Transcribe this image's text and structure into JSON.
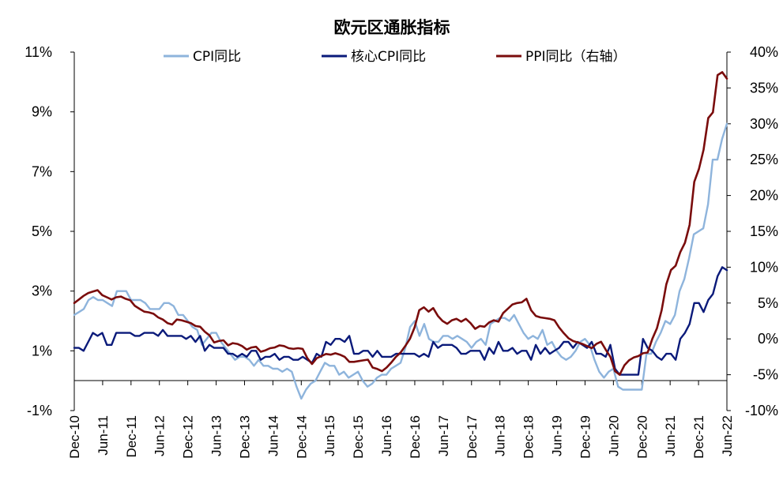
{
  "chart_data": {
    "type": "line",
    "title": "欧元区通胀指标",
    "left_axis": {
      "ticks": [
        "11%",
        "9%",
        "7%",
        "5%",
        "3%",
        "1%",
        "-1%"
      ],
      "range": [
        -1,
        11
      ],
      "unit": "%"
    },
    "right_axis": {
      "ticks": [
        "40%",
        "35%",
        "30%",
        "25%",
        "20%",
        "15%",
        "10%",
        "5%",
        "0%",
        "-5%",
        "-10%"
      ],
      "range": [
        -10,
        40
      ],
      "unit": "%"
    },
    "x_ticks": [
      "Dec-10",
      "Jun-11",
      "Dec-11",
      "Jun-12",
      "Dec-12",
      "Jun-13",
      "Dec-13",
      "Jun-14",
      "Dec-14",
      "Jun-15",
      "Dec-15",
      "Jun-16",
      "Dec-16",
      "Jun-17",
      "Dec-17",
      "Jun-18",
      "Dec-18",
      "Jun-19",
      "Dec-19",
      "Jun-20",
      "Dec-20",
      "Jun-21",
      "Dec-21",
      "Jun-22"
    ],
    "x_start": "Dec-10",
    "x_end": "Jun-22",
    "legend_position": "top",
    "series": [
      {
        "name": "CPI同比",
        "axis": "left",
        "color": "#8eb4dc",
        "values": [
          2.2,
          2.3,
          2.4,
          2.7,
          2.8,
          2.7,
          2.7,
          2.6,
          2.5,
          3.0,
          3.0,
          3.0,
          2.7,
          2.7,
          2.7,
          2.6,
          2.4,
          2.4,
          2.4,
          2.6,
          2.6,
          2.5,
          2.2,
          2.2,
          2.0,
          1.8,
          1.7,
          1.2,
          1.4,
          1.6,
          1.6,
          1.3,
          1.1,
          0.9,
          0.7,
          0.8,
          0.8,
          0.7,
          0.5,
          0.7,
          0.5,
          0.5,
          0.4,
          0.4,
          0.3,
          0.4,
          0.3,
          -0.2,
          -0.6,
          -0.3,
          -0.1,
          0.0,
          0.3,
          0.6,
          0.5,
          0.5,
          0.2,
          0.3,
          0.1,
          0.2,
          0.3,
          0.0,
          -0.2,
          -0.1,
          0.1,
          0.2,
          0.2,
          0.4,
          0.5,
          0.6,
          1.1,
          1.8,
          2.0,
          1.5,
          1.9,
          1.4,
          1.3,
          1.3,
          1.5,
          1.5,
          1.4,
          1.5,
          1.4,
          1.3,
          1.1,
          1.3,
          1.4,
          1.2,
          1.9,
          2.0,
          2.1,
          2.1,
          2.0,
          2.2,
          1.9,
          1.6,
          1.4,
          1.5,
          1.4,
          1.7,
          1.2,
          1.3,
          1.0,
          0.8,
          0.7,
          0.8,
          1.0,
          1.3,
          1.4,
          1.2,
          0.7,
          0.3,
          0.1,
          0.3,
          0.4,
          -0.2,
          -0.3,
          -0.3,
          -0.3,
          -0.3,
          -0.3,
          0.9,
          0.9,
          1.3,
          1.6,
          2.0,
          1.9,
          2.2,
          3.0,
          3.4,
          4.1,
          4.9,
          5.0,
          5.1,
          5.9,
          7.4,
          7.4,
          8.1,
          8.6
        ]
      },
      {
        "name": "核心CPI同比",
        "axis": "left",
        "color": "#0a1a7a",
        "values": [
          1.1,
          1.1,
          1.0,
          1.3,
          1.6,
          1.5,
          1.6,
          1.2,
          1.2,
          1.6,
          1.6,
          1.6,
          1.6,
          1.5,
          1.5,
          1.6,
          1.6,
          1.6,
          1.5,
          1.7,
          1.5,
          1.5,
          1.5,
          1.5,
          1.4,
          1.5,
          1.3,
          1.5,
          1.0,
          1.2,
          1.1,
          1.1,
          1.1,
          0.9,
          0.9,
          0.8,
          0.9,
          0.8,
          1.0,
          1.0,
          0.7,
          0.8,
          0.8,
          0.9,
          0.7,
          0.8,
          0.8,
          0.7,
          0.7,
          0.8,
          0.7,
          0.6,
          0.9,
          0.8,
          1.3,
          1.2,
          1.4,
          1.4,
          1.3,
          1.5,
          0.9,
          0.9,
          1.0,
          1.0,
          0.8,
          1.0,
          0.8,
          0.8,
          0.8,
          0.9,
          0.9,
          0.9,
          0.9,
          0.9,
          0.8,
          0.9,
          0.8,
          1.3,
          1.1,
          1.2,
          1.2,
          1.2,
          1.1,
          0.9,
          0.9,
          1.0,
          1.0,
          1.0,
          0.7,
          1.1,
          0.9,
          1.3,
          1.0,
          1.0,
          1.1,
          0.9,
          1.0,
          1.0,
          0.7,
          1.2,
          0.9,
          1.1,
          0.9,
          1.0,
          1.1,
          1.3,
          1.3,
          1.1,
          1.3,
          1.2,
          1.1,
          1.3,
          0.9,
          0.9,
          0.8,
          1.2,
          0.4,
          0.2,
          0.2,
          0.2,
          0.2,
          0.2,
          1.4,
          1.1,
          1.0,
          0.8,
          0.7,
          0.9,
          0.9,
          0.7,
          1.4,
          1.6,
          1.9,
          2.6,
          2.6,
          2.3,
          2.7,
          2.9,
          3.5,
          3.8,
          3.7
        ]
      },
      {
        "name": "PPI同比（右轴）",
        "axis": "right",
        "color": "#7a0c0c",
        "values": [
          5.0,
          5.5,
          6.0,
          6.4,
          6.6,
          6.8,
          6.1,
          5.8,
          5.5,
          5.8,
          5.9,
          5.6,
          5.4,
          4.6,
          4.2,
          3.8,
          3.7,
          3.5,
          3.0,
          2.7,
          2.2,
          2.0,
          2.7,
          2.6,
          2.4,
          2.2,
          1.8,
          1.7,
          1.0,
          0.5,
          -0.5,
          -0.3,
          -0.2,
          -0.9,
          -0.6,
          -0.7,
          -1.0,
          -1.5,
          -1.2,
          -1.1,
          -1.8,
          -1.6,
          -1.3,
          -1.2,
          -0.9,
          -1.0,
          -1.3,
          -1.4,
          -1.3,
          -1.4,
          -2.7,
          -3.5,
          -2.7,
          -2.4,
          -2.1,
          -2.2,
          -2.0,
          -2.2,
          -2.5,
          -3.2,
          -3.2,
          -3.1,
          -3.0,
          -2.9,
          -4.0,
          -4.2,
          -4.5,
          -4.0,
          -3.3,
          -2.5,
          -1.9,
          -1.0,
          0.0,
          1.6,
          4.0,
          4.4,
          3.8,
          4.3,
          3.2,
          2.5,
          2.1,
          2.6,
          2.8,
          2.4,
          2.8,
          2.2,
          1.4,
          1.8,
          1.7,
          2.3,
          2.6,
          2.4,
          3.6,
          4.2,
          4.8,
          5.0,
          5.1,
          5.6,
          4.0,
          3.2,
          3.0,
          2.9,
          2.8,
          2.6,
          1.6,
          0.8,
          0.1,
          -0.3,
          -0.5,
          -0.7,
          -1.0,
          -1.3,
          -0.7,
          -0.4,
          -1.5,
          -2.5,
          -4.5,
          -5.0,
          -3.7,
          -3.0,
          -2.6,
          -2.4,
          -2.0,
          -1.9,
          0.0,
          1.5,
          4.0,
          7.6,
          9.6,
          10.2,
          12.1,
          13.4,
          15.9,
          21.9,
          23.7,
          26.4,
          30.8,
          31.6,
          36.8,
          37.2,
          36.3
        ]
      }
    ]
  }
}
